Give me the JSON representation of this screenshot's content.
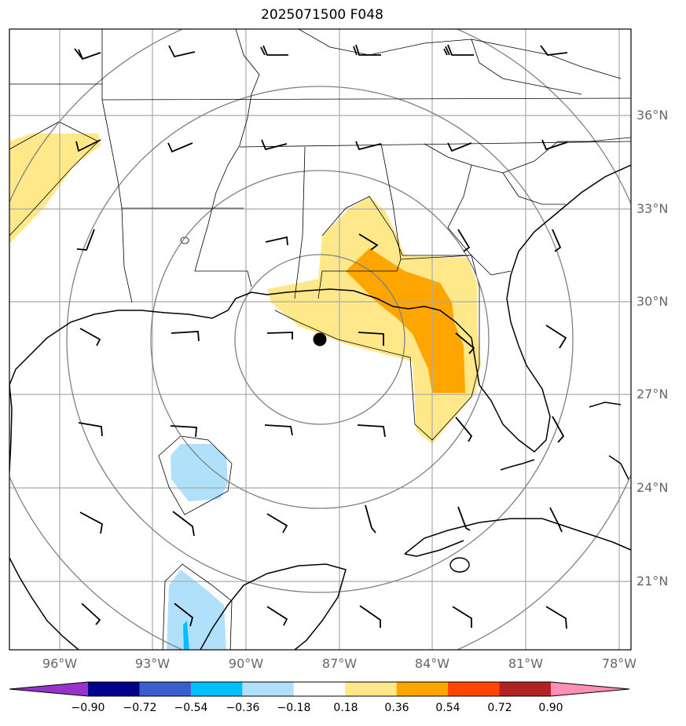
{
  "title": "2025071500 F048",
  "lat_labels": [
    "36°N",
    "33°N",
    "30°N",
    "27°N",
    "24°N",
    "21°N"
  ],
  "lon_labels": [
    "96°W",
    "93°W",
    "90°W",
    "87°W",
    "84°W",
    "81°W",
    "78°W"
  ],
  "colorbar": {
    "ticks": [
      "−0.90",
      "−0.72",
      "−0.54",
      "−0.36",
      "−0.18",
      "0.18",
      "0.36",
      "0.54",
      "0.72",
      "0.90"
    ],
    "colors": [
      "#9932cc",
      "#00008b",
      "#3a5fcd",
      "#00bfff",
      "#b0e0fa",
      "#ffffff",
      "#ffe88a",
      "#ffa500",
      "#ff4500",
      "#b22222",
      "#ff8fb6"
    ]
  },
  "storm_center": {
    "lat": 28.7,
    "lon": -87.5
  },
  "colors": {
    "light_yellow": "#ffe88a",
    "orange": "#ffa500",
    "light_blue": "#b0e0fa",
    "cyan": "#00bfff",
    "grid": "#aaaaaa",
    "range_ring": "#808080"
  }
}
